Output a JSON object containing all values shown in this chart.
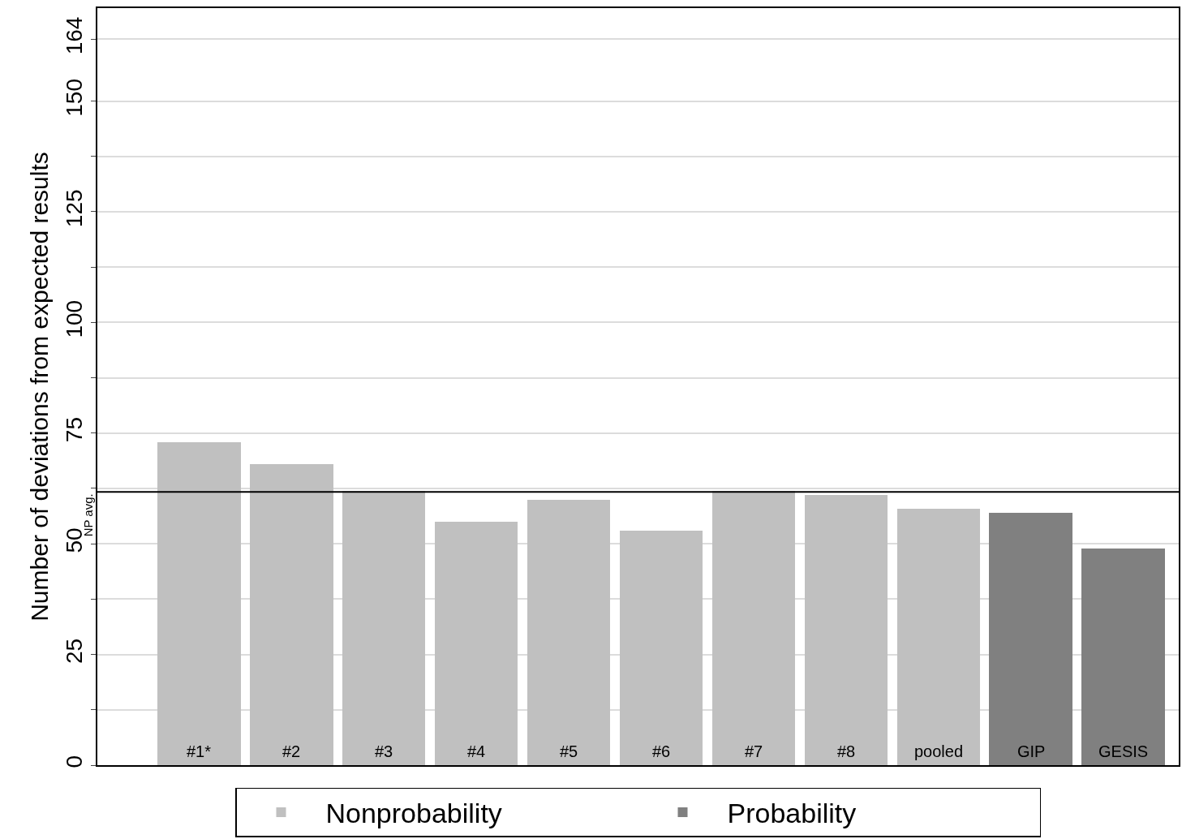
{
  "chart_data": {
    "type": "bar",
    "ylabel": "Number of deviations from expected results",
    "categories": [
      "#1*",
      "#2",
      "#3",
      "#4",
      "#5",
      "#6",
      "#7",
      "#8",
      "pooled",
      "GIP",
      "GESIS"
    ],
    "series": [
      {
        "name": "Nonprobability",
        "color": "#c0c0c0",
        "values": [
          73,
          68,
          62,
          55,
          60,
          53,
          62,
          61,
          58,
          null,
          null
        ]
      },
      {
        "name": "Probability",
        "color": "#808080",
        "values": [
          null,
          null,
          null,
          null,
          null,
          null,
          null,
          null,
          null,
          57,
          49
        ]
      }
    ],
    "ylim": [
      0,
      171
    ],
    "yticks": [
      0,
      {
        "value": 12.5,
        "label": null
      },
      25,
      {
        "value": 37.5,
        "label": null
      },
      50,
      {
        "value": 62.5,
        "label": null
      },
      75,
      {
        "value": 87.5,
        "label": null
      },
      100,
      {
        "value": 112.5,
        "label": null
      },
      125,
      {
        "value": 137.5,
        "label": null
      },
      150,
      164
    ],
    "ref_lines": [
      {
        "axis": "y",
        "value": 61.7,
        "label": "NP avg.",
        "color": "#000000"
      }
    ],
    "grid": "y",
    "legend": "bottom"
  }
}
